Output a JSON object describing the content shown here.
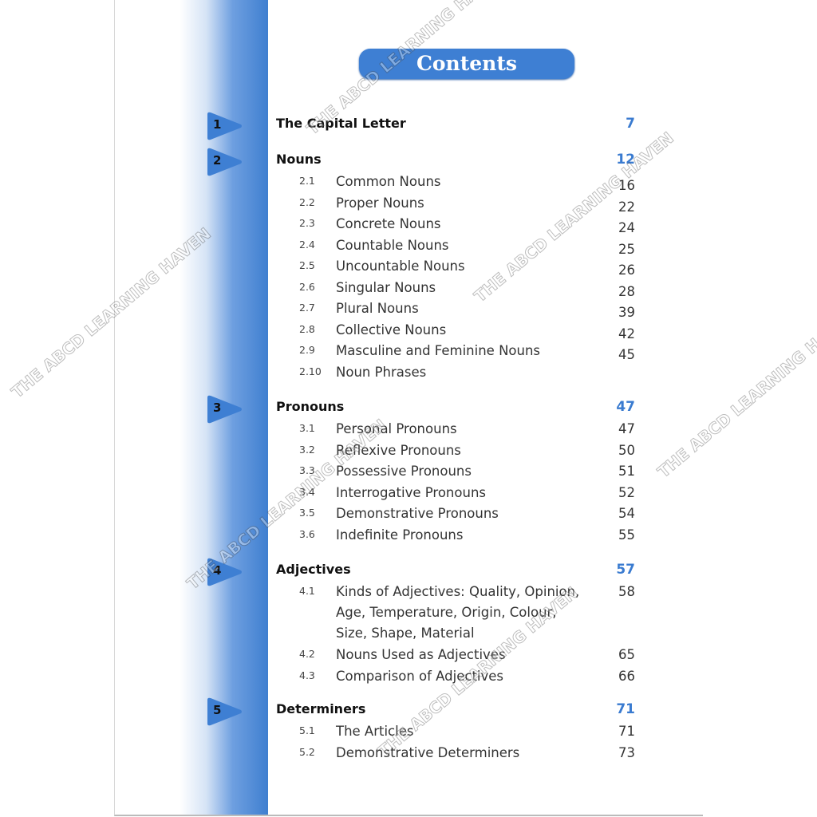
{
  "header": {
    "title": "Contents"
  },
  "watermark": "THE ABCD LEARNING HAVEN",
  "colors": {
    "accent": "#3e7fd3",
    "page_number": "#3a7bd0"
  },
  "chapters": [
    {
      "number": "1",
      "title": "The Capital Letter",
      "page": "7",
      "items": []
    },
    {
      "number": "2",
      "title": "Nouns",
      "page": "12",
      "items": [
        {
          "num": "2.1",
          "title": "Common Nouns",
          "page": "16"
        },
        {
          "num": "2.2",
          "title": "Proper Nouns",
          "page": "22"
        },
        {
          "num": "2.3",
          "title": "Concrete Nouns",
          "page": "24"
        },
        {
          "num": "2.4",
          "title": "Countable Nouns",
          "page": "25"
        },
        {
          "num": "2.5",
          "title": "Uncountable Nouns",
          "page": "26"
        },
        {
          "num": "2.6",
          "title": "Singular Nouns",
          "page": "28"
        },
        {
          "num": "2.7",
          "title": "Plural Nouns",
          "page": "39"
        },
        {
          "num": "2.8",
          "title": "Collective Nouns",
          "page": "42"
        },
        {
          "num": "2.9",
          "title": "Masculine and Feminine Nouns",
          "page": "45"
        },
        {
          "num": "2.10",
          "title": "Noun Phrases",
          "page": ""
        }
      ]
    },
    {
      "number": "3",
      "title": "Pronouns",
      "page": "47",
      "items": [
        {
          "num": "3.1",
          "title": "Personal Pronouns",
          "page": "47"
        },
        {
          "num": "3.2",
          "title": "Reflexive Pronouns",
          "page": "50"
        },
        {
          "num": "3.3",
          "title": "Possessive Pronouns",
          "page": "51"
        },
        {
          "num": "3.4",
          "title": "Interrogative Pronouns",
          "page": "52"
        },
        {
          "num": "3.5",
          "title": "Demonstrative Pronouns",
          "page": "54"
        },
        {
          "num": "3.6",
          "title": "Indefinite Pronouns",
          "page": "55"
        }
      ]
    },
    {
      "number": "4",
      "title": "Adjectives",
      "page": "57",
      "items": [
        {
          "num": "4.1",
          "title": "Kinds of Adjectives: Quality, Opinion, Age, Temperature, Origin, Colour, Size, Shape, Material",
          "page": "58"
        },
        {
          "num": "4.2",
          "title": "Nouns Used as Adjectives",
          "page": "65"
        },
        {
          "num": "4.3",
          "title": "Comparison of Adjectives",
          "page": "66"
        }
      ]
    },
    {
      "number": "5",
      "title": "Determiners",
      "page": "71",
      "items": [
        {
          "num": "5.1",
          "title": "The Articles",
          "page": "71"
        },
        {
          "num": "5.2",
          "title": "Demonstrative Determiners",
          "page": "73"
        }
      ]
    }
  ]
}
